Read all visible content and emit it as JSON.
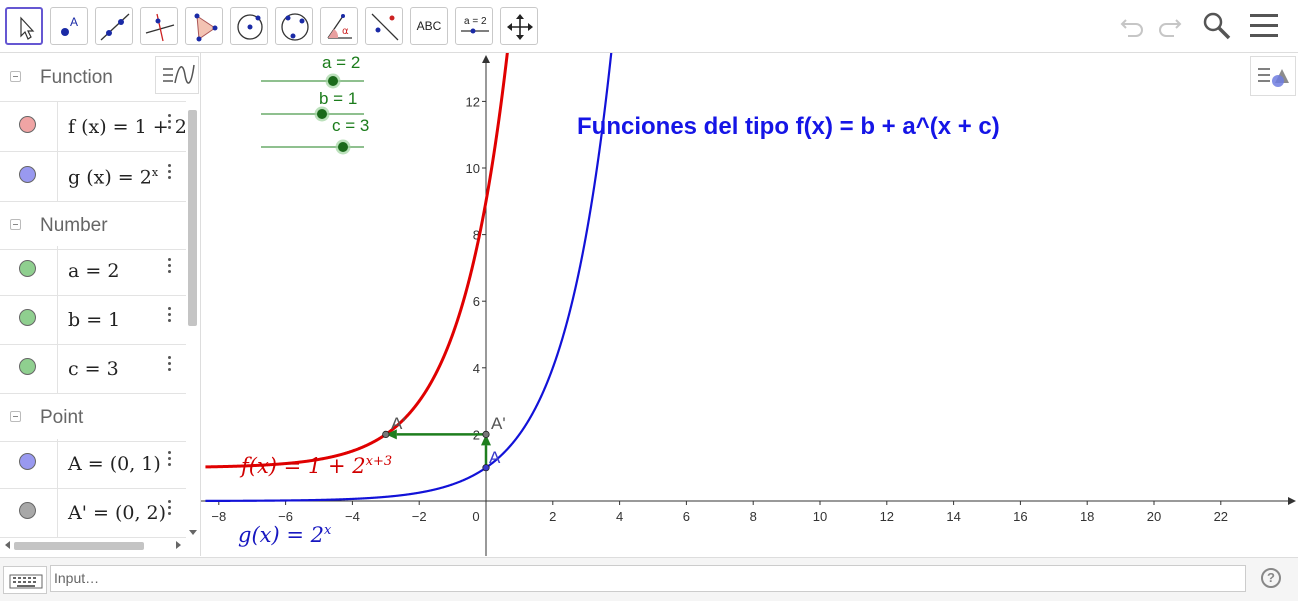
{
  "toolbar": {
    "tools": [
      {
        "name": "move-tool",
        "icon": "pointer-arrow-icon",
        "active": true
      },
      {
        "name": "point-tool",
        "icon": "point-a-icon",
        "label": "A"
      },
      {
        "name": "line-tool",
        "icon": "line-through-points-icon"
      },
      {
        "name": "perpendicular-line-tool",
        "icon": "perpendicular-line-icon"
      },
      {
        "name": "polygon-tool",
        "icon": "triangle-icon"
      },
      {
        "name": "circle-tool",
        "icon": "circle-center-point-icon"
      },
      {
        "name": "conic-tool",
        "icon": "circle-three-points-icon"
      },
      {
        "name": "angle-tool",
        "icon": "angle-icon",
        "label": "α"
      },
      {
        "name": "reflect-tool",
        "icon": "reflect-point-icon"
      },
      {
        "name": "text-tool",
        "icon": "text-icon",
        "label": "ABC"
      },
      {
        "name": "slider-tool",
        "icon": "slider-icon",
        "label": "a = 2"
      },
      {
        "name": "move-graphics-tool",
        "icon": "move-arrows-icon"
      }
    ],
    "right_icons": [
      "undo-icon",
      "redo-icon",
      "search-icon",
      "hamburger-menu-icon"
    ]
  },
  "algebra": {
    "groups": [
      {
        "title": "Function",
        "items": [
          {
            "color": "#f0a4a4",
            "text": "f (x)  =  1 + 2"
          },
          {
            "color": "#9999f0",
            "text": "g (x)  =  2"
          }
        ]
      },
      {
        "title": "Number",
        "items": [
          {
            "color": "#8fcf8f",
            "text": "a = 2"
          },
          {
            "color": "#8fcf8f",
            "text": "b = 1"
          },
          {
            "color": "#8fcf8f",
            "text": "c = 3"
          }
        ]
      },
      {
        "title": "Point",
        "items": [
          {
            "color": "#9999f0",
            "text": "A = (0, 1)"
          },
          {
            "color": "#a8a8a8",
            "text": "A' = (0, 2)"
          }
        ]
      }
    ],
    "g_superscript": "x"
  },
  "graphics": {
    "title": "Funciones del tipo f(x) = b + a^(x + c)",
    "f_label": "f(x)  =  1 + 2",
    "f_label_sup": "x+3",
    "g_label": "g(x)  =  2",
    "g_label_sup": "x",
    "sliders": [
      {
        "name": "a",
        "label": "a = 2",
        "value": 2
      },
      {
        "name": "b",
        "label": "b = 1",
        "value": 1
      },
      {
        "name": "c",
        "label": "c = 3",
        "value": 3
      }
    ],
    "points": [
      {
        "label": "A",
        "x": 0,
        "y": 1
      },
      {
        "label": "A'",
        "x": 0,
        "y": 2
      },
      {
        "label": "A'",
        "x": -3,
        "y": 2
      }
    ],
    "colors": {
      "f": "#e00000",
      "g": "#1212d8",
      "vector": "#1e7e1e",
      "slider": "#1b7c1b"
    }
  },
  "chart_data": {
    "type": "line",
    "title": "Funciones del tipo f(x) = b + a^(x + c)",
    "xlabel": "",
    "ylabel": "",
    "x_ticks": [
      -8,
      -6,
      -4,
      -2,
      0,
      2,
      4,
      6,
      8,
      10,
      12,
      14,
      16,
      18,
      20,
      22
    ],
    "y_ticks": [
      2,
      4,
      6,
      8,
      10,
      12
    ],
    "xlim": [
      -8.4,
      24.2
    ],
    "ylim": [
      -1.6,
      13.5
    ],
    "grid": false,
    "series": [
      {
        "name": "f(x) = 1 + 2^(x+3)",
        "formula": "1 + 2^(x+3)",
        "color": "#e00000"
      },
      {
        "name": "g(x) = 2^x",
        "formula": "2^x",
        "color": "#1212d8"
      }
    ],
    "vectors": [
      {
        "from": [
          0,
          1
        ],
        "to": [
          0,
          2
        ]
      },
      {
        "from": [
          0,
          2
        ],
        "to": [
          -3,
          2
        ]
      }
    ]
  },
  "input": {
    "placeholder": "Input…"
  }
}
